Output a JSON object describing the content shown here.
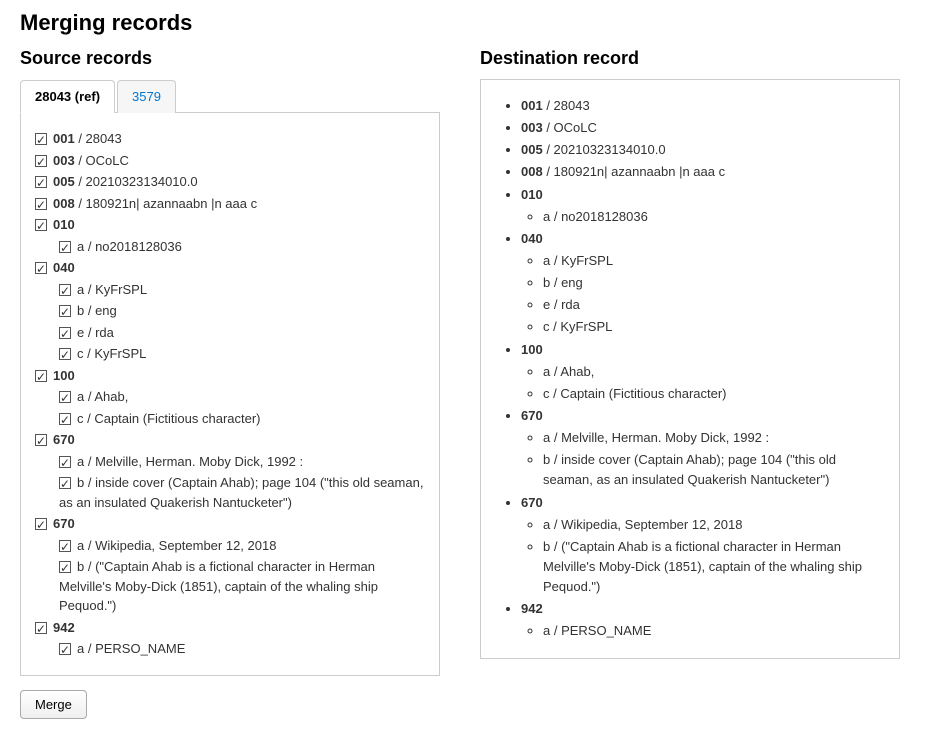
{
  "page_title": "Merging records",
  "source": {
    "heading": "Source records",
    "tabs": [
      {
        "label": "28043 (ref)",
        "active": true
      },
      {
        "label": "3579",
        "active": false
      }
    ],
    "fields": [
      {
        "tag": "001",
        "value": "28043"
      },
      {
        "tag": "003",
        "value": "OCoLC"
      },
      {
        "tag": "005",
        "value": "20210323134010.0"
      },
      {
        "tag": "008",
        "value": "180921n| azannaabn |n aaa c"
      },
      {
        "tag": "010",
        "subs": [
          {
            "code": "a",
            "value": "no2018128036"
          }
        ]
      },
      {
        "tag": "040",
        "subs": [
          {
            "code": "a",
            "value": "KyFrSPL"
          },
          {
            "code": "b",
            "value": "eng"
          },
          {
            "code": "e",
            "value": "rda"
          },
          {
            "code": "c",
            "value": "KyFrSPL"
          }
        ]
      },
      {
        "tag": "100",
        "subs": [
          {
            "code": "a",
            "value": "Ahab,"
          },
          {
            "code": "c",
            "value": "Captain (Fictitious character)"
          }
        ]
      },
      {
        "tag": "670",
        "subs": [
          {
            "code": "a",
            "value": "Melville, Herman. Moby Dick, 1992 :"
          },
          {
            "code": "b",
            "value": "inside cover (Captain Ahab); page 104 (\"this old seaman, as an insulated Quakerish Nantucketer\")"
          }
        ]
      },
      {
        "tag": "670",
        "subs": [
          {
            "code": "a",
            "value": "Wikipedia, September 12, 2018"
          },
          {
            "code": "b",
            "value": "(\"Captain Ahab is a fictional character in Herman Melville's Moby-Dick (1851), captain of the whaling ship Pequod.\")"
          }
        ]
      },
      {
        "tag": "942",
        "subs": [
          {
            "code": "a",
            "value": "PERSO_NAME"
          }
        ]
      }
    ]
  },
  "destination": {
    "heading": "Destination record",
    "fields": [
      {
        "tag": "001",
        "value": "28043"
      },
      {
        "tag": "003",
        "value": "OCoLC"
      },
      {
        "tag": "005",
        "value": "20210323134010.0"
      },
      {
        "tag": "008",
        "value": "180921n| azannaabn |n aaa c"
      },
      {
        "tag": "010",
        "subs": [
          {
            "code": "a",
            "value": "no2018128036"
          }
        ]
      },
      {
        "tag": "040",
        "subs": [
          {
            "code": "a",
            "value": "KyFrSPL"
          },
          {
            "code": "b",
            "value": "eng"
          },
          {
            "code": "e",
            "value": "rda"
          },
          {
            "code": "c",
            "value": "KyFrSPL"
          }
        ]
      },
      {
        "tag": "100",
        "subs": [
          {
            "code": "a",
            "value": "Ahab,"
          },
          {
            "code": "c",
            "value": "Captain (Fictitious character)"
          }
        ]
      },
      {
        "tag": "670",
        "subs": [
          {
            "code": "a",
            "value": "Melville, Herman. Moby Dick, 1992 :"
          },
          {
            "code": "b",
            "value": "inside cover (Captain Ahab); page 104 (\"this old seaman, as an insulated Quakerish Nantucketer\")"
          }
        ]
      },
      {
        "tag": "670",
        "subs": [
          {
            "code": "a",
            "value": "Wikipedia, September 12, 2018"
          },
          {
            "code": "b",
            "value": "(\"Captain Ahab is a fictional character in Herman Melville's Moby-Dick (1851), captain of the whaling ship Pequod.\")"
          }
        ]
      },
      {
        "tag": "942",
        "subs": [
          {
            "code": "a",
            "value": "PERSO_NAME"
          }
        ]
      }
    ]
  },
  "buttons": {
    "merge": "Merge"
  }
}
